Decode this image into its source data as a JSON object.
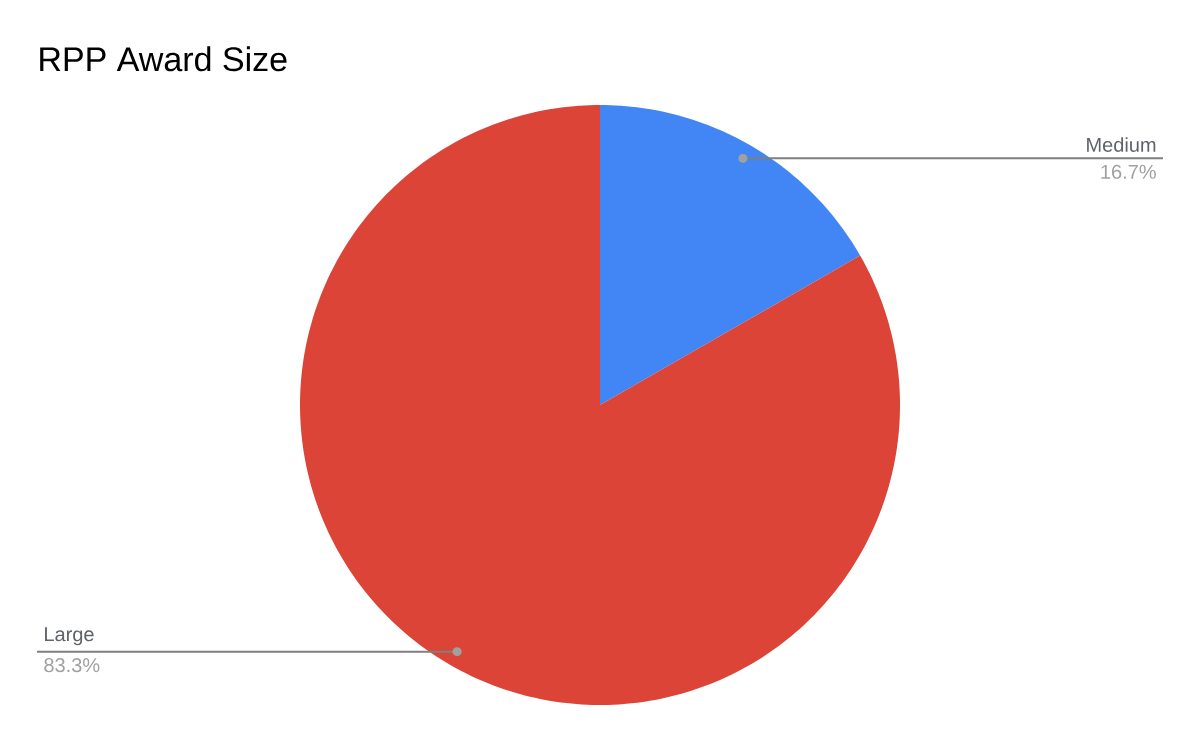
{
  "chart_data": {
    "type": "pie",
    "title": "RPP Award Size",
    "categories": [
      "Medium",
      "Large"
    ],
    "values": [
      16.7,
      83.3
    ],
    "colors": [
      "#4285f4",
      "#db4437"
    ],
    "value_labels": [
      "16.7%",
      "83.3%"
    ]
  }
}
